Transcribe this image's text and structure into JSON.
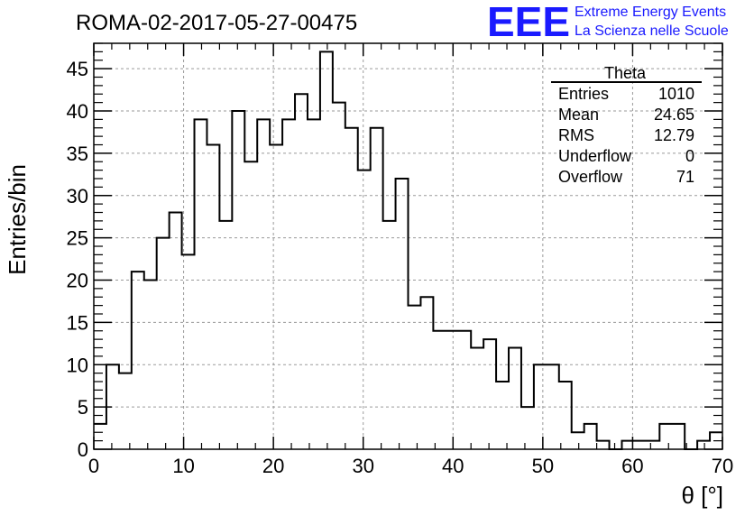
{
  "header": {
    "title": "ROMA-02-2017-05-27-00475",
    "logo_mark": "EEE",
    "logo_line1": "Extreme Energy Events",
    "logo_line2": "La Scienza nelle Scuole"
  },
  "stats": {
    "title": "Theta",
    "rows": [
      {
        "label": "Entries",
        "value": "1010"
      },
      {
        "label": "Mean",
        "value": "24.65"
      },
      {
        "label": "RMS",
        "value": "12.79"
      },
      {
        "label": "Underflow",
        "value": "0"
      },
      {
        "label": "Overflow",
        "value": "71"
      }
    ]
  },
  "colors": {
    "logo": "#1a1aff",
    "line": "#000000",
    "grid": "#9a9a9a"
  },
  "chart_data": {
    "type": "histogram",
    "title": "ROMA-02-2017-05-27-00475",
    "xlabel": "θ [°]",
    "ylabel": "Entries/bin",
    "xlim": [
      0,
      70
    ],
    "ylim": [
      0,
      48
    ],
    "bin_width": 1.4,
    "x_ticks": [
      "0",
      "10",
      "20",
      "30",
      "40",
      "50",
      "60",
      "70"
    ],
    "y_ticks": [
      "0",
      "5",
      "10",
      "15",
      "20",
      "25",
      "30",
      "35",
      "40",
      "45"
    ],
    "grid": true,
    "values": [
      3,
      10,
      9,
      21,
      20,
      25,
      28,
      23,
      39,
      36,
      27,
      40,
      34,
      39,
      36,
      39,
      42,
      39,
      47,
      41,
      38,
      33,
      38,
      27,
      32,
      17,
      18,
      14,
      14,
      14,
      12,
      13,
      8,
      12,
      5,
      10,
      10,
      8,
      2,
      3,
      1,
      0,
      1,
      1,
      1,
      3,
      3,
      0,
      1,
      2
    ]
  }
}
